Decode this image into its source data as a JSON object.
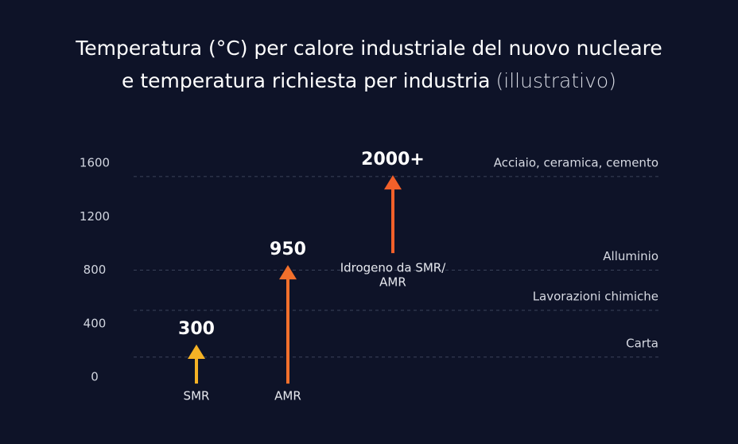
{
  "chart_data": {
    "type": "arrow",
    "title": [
      "Temperatura (°C) per calore industriale del nuovo nucleare",
      "e temperatura richiesta per industria"
    ],
    "subtitle": "(illustrativo)",
    "ylim": [
      0,
      1600
    ],
    "yticks": [
      0,
      400,
      800,
      1200,
      1600
    ],
    "grid": false,
    "arrows": [
      {
        "category": [
          "SMR"
        ],
        "label": "300",
        "start": -48,
        "end": 244,
        "color": "#f5b225"
      },
      {
        "category": [
          "AMR"
        ],
        "label": "950",
        "start": -48,
        "end": 838,
        "color": "#f2702c"
      },
      {
        "category": [
          "Idrogeno da SMR/",
          "AMR"
        ],
        "label": "2000+",
        "start": 927,
        "end": 1510,
        "color": "#f2602a"
      }
    ],
    "references": [
      {
        "label": "Acciaio, ceramica, cemento",
        "value": 1500
      },
      {
        "label": "Alluminio",
        "value": 800
      },
      {
        "label": "Lavorazioni chimiche",
        "value": 500
      },
      {
        "label": "Carta",
        "value": 150
      }
    ]
  }
}
